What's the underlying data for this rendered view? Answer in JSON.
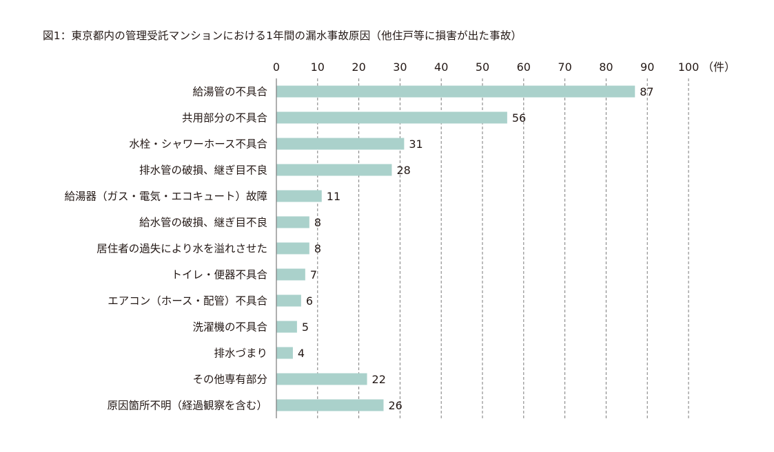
{
  "chart_data": {
    "type": "bar",
    "orientation": "horizontal",
    "title": "図1：東京都内の管理受託マンションにおける1年間の漏水事故原因（他住戸等に損害が出た事故）",
    "xlabel": "",
    "ylabel": "",
    "unit_label": "（件）",
    "xlim": [
      0,
      100
    ],
    "ticks": [
      "0",
      "10",
      "20",
      "30",
      "40",
      "50",
      "60",
      "70",
      "80",
      "90",
      "100"
    ],
    "tick_values": [
      0,
      10,
      20,
      30,
      40,
      50,
      60,
      70,
      80,
      90,
      100
    ],
    "grid": true,
    "categories": [
      "給湯管の不具合",
      "共用部分の不具合",
      "水栓・シャワーホース不具合",
      "排水管の破損、継ぎ目不良",
      "給湯器（ガス・電気・エコキュート）故障",
      "給水管の破損、継ぎ目不良",
      "居住者の過失により水を溢れさせた",
      "トイレ・便器不具合",
      "エアコン（ホース・配管）不具合",
      "洗濯機の不具合",
      "排水づまり",
      "その他専有部分",
      "原因箇所不明（経過観察を含む）"
    ],
    "values": [
      87,
      56,
      31,
      28,
      11,
      8,
      8,
      7,
      6,
      5,
      4,
      22,
      26
    ],
    "bar_color": "#aad1cb",
    "axis_color": "#7a7a7a",
    "grid_color": "#7a7a7a"
  }
}
